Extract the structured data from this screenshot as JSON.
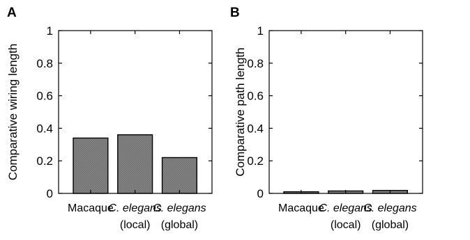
{
  "chart_data": [
    {
      "type": "bar",
      "panel": "A",
      "ylabel": "Comparative wiring length",
      "ylim": [
        0,
        1
      ],
      "yticks": [
        "0",
        "0.2",
        "0.4",
        "0.6",
        "0.8",
        "1"
      ],
      "categories": [
        {
          "line1": "Macaque",
          "line1_italic": "",
          "line1_rest": "",
          "line2": ""
        },
        {
          "line1": "",
          "line1_italic": "C.",
          "line1_rest": " elegans",
          "line2": "(local)"
        },
        {
          "line1": "",
          "line1_italic": "C.",
          "line1_rest": " elegans",
          "line2": "(global)"
        }
      ],
      "values": [
        0.34,
        0.36,
        0.22
      ],
      "bar_color": "#808080"
    },
    {
      "type": "bar",
      "panel": "B",
      "ylabel": "Comparative path length",
      "ylim": [
        0,
        1
      ],
      "yticks": [
        "0",
        "0.2",
        "0.4",
        "0.6",
        "0.8",
        "1"
      ],
      "categories": [
        {
          "line1": "Macaque",
          "line1_italic": "",
          "line1_rest": "",
          "line2": ""
        },
        {
          "line1": "",
          "line1_italic": "C.",
          "line1_rest": " elegans",
          "line2": "(local)"
        },
        {
          "line1": "",
          "line1_italic": "C.",
          "line1_rest": " elegans",
          "line2": "(global)"
        }
      ],
      "values": [
        0.01,
        0.015,
        0.018
      ],
      "bar_color": "#808080"
    }
  ]
}
